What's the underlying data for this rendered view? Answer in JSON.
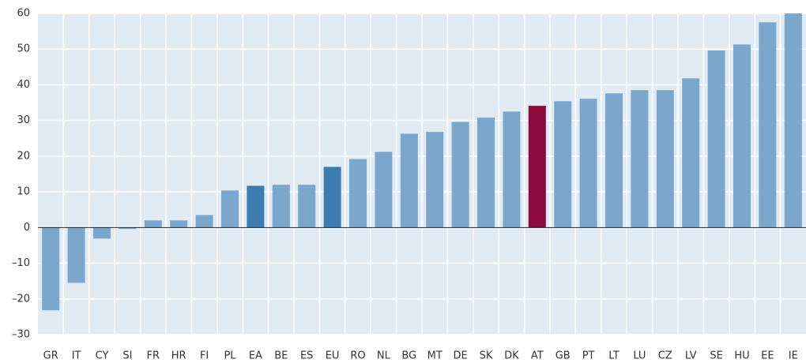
{
  "chart_data": {
    "type": "bar",
    "categories": [
      "GR",
      "IT",
      "CY",
      "SI",
      "FR",
      "HR",
      "FI",
      "PL",
      "EA",
      "BE",
      "ES",
      "EU",
      "RO",
      "NL",
      "BG",
      "MT",
      "DE",
      "SK",
      "DK",
      "AT",
      "GB",
      "PT",
      "LT",
      "LU",
      "CZ",
      "LV",
      "SE",
      "HU",
      "EE",
      "IE"
    ],
    "values": [
      -23.2,
      -15.5,
      -3.1,
      -0.4,
      2.0,
      2.0,
      3.5,
      10.4,
      11.7,
      12.0,
      12.0,
      17.0,
      19.2,
      21.2,
      26.3,
      26.8,
      29.6,
      30.8,
      32.5,
      34.1,
      35.4,
      36.1,
      37.6,
      38.5,
      38.5,
      41.8,
      49.6,
      51.3,
      57.5,
      60.0
    ],
    "colors": [
      "#7ba7cc",
      "#7ba7cc",
      "#7ba7cc",
      "#7ba7cc",
      "#7ba7cc",
      "#7ba7cc",
      "#7ba7cc",
      "#7ba7cc",
      "#3b7db1",
      "#7ba7cc",
      "#7ba7cc",
      "#3b7db1",
      "#7ba7cc",
      "#7ba7cc",
      "#7ba7cc",
      "#7ba7cc",
      "#7ba7cc",
      "#7ba7cc",
      "#7ba7cc",
      "#8a0a3c",
      "#7ba7cc",
      "#7ba7cc",
      "#7ba7cc",
      "#7ba7cc",
      "#7ba7cc",
      "#7ba7cc",
      "#7ba7cc",
      "#7ba7cc",
      "#7ba7cc",
      "#7ba7cc"
    ],
    "ylim": [
      -30,
      60
    ],
    "yticks": [
      {
        "value": -30,
        "label": "–30"
      },
      {
        "value": -20,
        "label": "–20"
      },
      {
        "value": -10,
        "label": "–10"
      },
      0,
      10,
      20,
      30,
      40,
      50,
      60
    ],
    "grid": true
  }
}
